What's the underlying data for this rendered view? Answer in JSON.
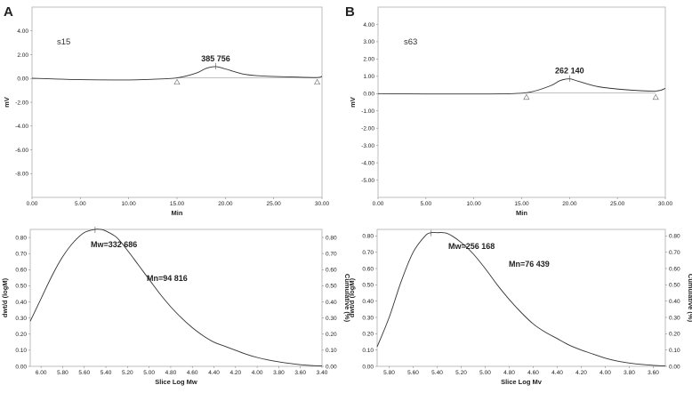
{
  "chart_data": [
    {
      "type": "line",
      "panel_label": "A",
      "sample_label": "s15",
      "xlabel": "Min",
      "ylabel": "mV",
      "xlim": [
        0,
        30
      ],
      "ylim": [
        -10,
        6
      ],
      "x_ticks": [
        "0.00",
        "5.00",
        "10.00",
        "15.00",
        "20.00",
        "25.00",
        "30.00"
      ],
      "y_ticks": [
        "4.00",
        "2.00",
        "0.00",
        "-2.00",
        "-4.00",
        "-6.00",
        "-8.00"
      ],
      "peak_label": "385 756",
      "series": [
        {
          "name": "s15",
          "x": [
            0,
            5,
            10,
            13,
            15,
            17,
            18,
            19,
            20,
            22,
            24,
            27,
            29.5,
            30
          ],
          "y": [
            0.02,
            -0.1,
            -0.12,
            -0.05,
            0.05,
            0.45,
            0.85,
            1.0,
            0.8,
            0.35,
            0.2,
            0.12,
            0.08,
            0.18
          ]
        }
      ],
      "markers": [
        15,
        29.5
      ]
    },
    {
      "type": "line",
      "panel_label": "B",
      "sample_label": "s63",
      "xlabel": "Min",
      "ylabel": "mV",
      "xlim": [
        0,
        30
      ],
      "ylim": [
        -6,
        5
      ],
      "x_ticks": [
        "0.00",
        "5.00",
        "10.00",
        "15.00",
        "20.00",
        "25.00",
        "30.00"
      ],
      "y_ticks": [
        "4.00",
        "3.00",
        "2.00",
        "1.00",
        "0.00",
        "-1.00",
        "-2.00",
        "-3.00",
        "-4.00",
        "-5.00"
      ],
      "peak_label": "262 140",
      "series": [
        {
          "name": "s63",
          "x": [
            0,
            5,
            10,
            14,
            16,
            18,
            19,
            20,
            21,
            23,
            26,
            29,
            30
          ],
          "y": [
            0.0,
            -0.02,
            -0.02,
            0.0,
            0.1,
            0.45,
            0.75,
            0.85,
            0.7,
            0.4,
            0.22,
            0.15,
            0.3
          ]
        }
      ],
      "markers": [
        15.5,
        29
      ]
    },
    {
      "type": "line",
      "xlabel": "Slice Log Mw",
      "ylabel": "dwt/d (logM)",
      "ylabel_right": "Cumulative (%)",
      "xlim": [
        6.1,
        3.4
      ],
      "ylim": [
        0,
        0.85
      ],
      "x_ticks": [
        "6.00",
        "5.80",
        "5.60",
        "5.40",
        "5.20",
        "5.00",
        "4.80",
        "4.60",
        "4.40",
        "4.20",
        "4.00",
        "3.80",
        "3.60",
        "3.40"
      ],
      "y_ticks": [
        "0.80",
        "0.70",
        "0.60",
        "0.50",
        "0.40",
        "0.30",
        "0.20",
        "0.10",
        "0.00"
      ],
      "annotations": [
        "Mw=332 686",
        "Mn=94 816"
      ],
      "series": [
        {
          "name": "s15",
          "x": [
            6.1,
            6.0,
            5.9,
            5.8,
            5.7,
            5.6,
            5.5,
            5.45,
            5.4,
            5.3,
            5.2,
            5.1,
            5.0,
            4.9,
            4.8,
            4.7,
            4.6,
            4.5,
            4.4,
            4.3,
            4.2,
            4.1,
            4.0,
            3.9,
            3.8,
            3.7,
            3.6,
            3.5,
            3.4
          ],
          "y": [
            0.28,
            0.42,
            0.56,
            0.68,
            0.77,
            0.83,
            0.85,
            0.85,
            0.84,
            0.8,
            0.72,
            0.63,
            0.54,
            0.45,
            0.37,
            0.3,
            0.24,
            0.19,
            0.15,
            0.125,
            0.1,
            0.075,
            0.055,
            0.04,
            0.028,
            0.018,
            0.01,
            0.005,
            0.002
          ]
        }
      ]
    },
    {
      "type": "line",
      "xlabel": "Slice Log Mv",
      "ylabel": "dwt/d (logM)",
      "ylabel_right": "Cumulative (%)",
      "xlim": [
        5.9,
        3.5
      ],
      "ylim": [
        0,
        0.84
      ],
      "x_ticks": [
        "5.80",
        "5.60",
        "5.40",
        "5.20",
        "5.00",
        "4.80",
        "4.60",
        "4.40",
        "4.20",
        "4.00",
        "3.80",
        "3.60"
      ],
      "y_ticks": [
        "0.80",
        "0.70",
        "0.60",
        "0.50",
        "0.40",
        "0.30",
        "0.20",
        "0.10",
        "0.00"
      ],
      "annotations": [
        "Mw=256 168",
        "Mn=76 439"
      ],
      "series": [
        {
          "name": "s63",
          "x": [
            5.9,
            5.8,
            5.7,
            5.6,
            5.5,
            5.45,
            5.4,
            5.35,
            5.3,
            5.2,
            5.1,
            5.0,
            4.9,
            4.8,
            4.7,
            4.6,
            4.5,
            4.4,
            4.3,
            4.2,
            4.1,
            4.0,
            3.9,
            3.8,
            3.7,
            3.6,
            3.5
          ],
          "y": [
            0.12,
            0.3,
            0.52,
            0.7,
            0.8,
            0.82,
            0.82,
            0.82,
            0.81,
            0.76,
            0.69,
            0.6,
            0.5,
            0.41,
            0.33,
            0.26,
            0.21,
            0.17,
            0.13,
            0.1,
            0.075,
            0.05,
            0.032,
            0.02,
            0.012,
            0.006,
            0.003
          ]
        }
      ]
    }
  ]
}
